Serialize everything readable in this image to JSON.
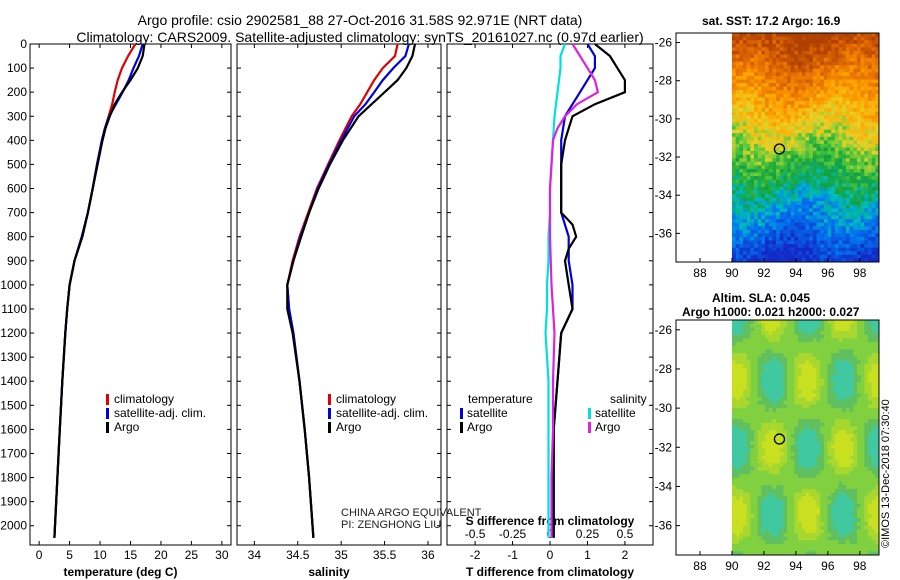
{
  "header": {
    "title_line1": "Argo profile: csio 2902581_88 27-Oct-2016 31.58S 92.971E (NRT data)",
    "title_line2": "Climatology: CARS2009. Satellite-adjusted climatology: synTS_20161027.nc (0.97d earlier)"
  },
  "colors": {
    "climatology": "#e00000",
    "satellite": "#0000e0",
    "argo": "#000000",
    "sat_salinity": "#00e0e0",
    "argo_salinity": "#e020e0"
  },
  "chart_data": [
    {
      "type": "line",
      "name": "temperature",
      "xlabel": "temperature (deg C)",
      "ylabel": "",
      "xlim": [
        -1.5,
        31.5
      ],
      "ylim": [
        2080,
        0
      ],
      "xticks": [
        0,
        5,
        10,
        15,
        20,
        25,
        30
      ],
      "yticks": [
        0,
        100,
        200,
        300,
        400,
        500,
        600,
        700,
        800,
        900,
        1000,
        1100,
        1200,
        1300,
        1400,
        1500,
        1600,
        1700,
        1800,
        1900,
        2000
      ],
      "legend": [
        "climatology",
        "satellite-adj. clim.",
        "Argo"
      ],
      "series": [
        {
          "name": "climatology",
          "depth": [
            0,
            50,
            100,
            150,
            200,
            250,
            300,
            350,
            400,
            500,
            600,
            700,
            800,
            900,
            1000,
            1100,
            1200,
            1400,
            1600,
            1800,
            2050
          ],
          "values": [
            15.8,
            14.6,
            13.6,
            12.9,
            12.4,
            12.0,
            11.4,
            10.8,
            10.3,
            9.5,
            8.8,
            8.0,
            7.0,
            5.8,
            5.0,
            4.6,
            4.3,
            3.8,
            3.4,
            3.0,
            2.5
          ]
        },
        {
          "name": "satellite-adj. clim.",
          "depth": [
            0,
            50,
            100,
            150,
            200,
            250,
            300,
            350,
            400,
            500,
            600,
            700,
            800,
            900,
            1000,
            1100,
            1200,
            1400,
            1600,
            1800,
            2050
          ],
          "values": [
            17.0,
            16.4,
            15.5,
            14.7,
            13.7,
            12.6,
            11.5,
            10.8,
            10.3,
            9.5,
            8.8,
            8.0,
            7.0,
            5.8,
            5.0,
            4.6,
            4.3,
            3.8,
            3.4,
            3.0,
            2.5
          ]
        },
        {
          "name": "Argo",
          "depth": [
            0,
            50,
            100,
            150,
            200,
            250,
            300,
            350,
            400,
            500,
            600,
            700,
            800,
            900,
            1000,
            1100,
            1200,
            1400,
            1600,
            1800,
            2050
          ],
          "values": [
            17.3,
            17.0,
            16.2,
            15.0,
            13.6,
            12.4,
            11.6,
            10.9,
            10.4,
            9.6,
            8.8,
            8.0,
            7.1,
            5.8,
            5.0,
            4.6,
            4.3,
            3.8,
            3.4,
            3.0,
            2.5
          ]
        }
      ]
    },
    {
      "type": "line",
      "name": "salinity",
      "xlabel": "salinity",
      "ylabel": "",
      "xlim": [
        33.8,
        36.15
      ],
      "ylim": [
        2080,
        0
      ],
      "xticks": [
        34,
        34.5,
        35,
        35.5,
        36
      ],
      "legend": [
        "climatology",
        "satellite-adj. clim.",
        "Argo"
      ],
      "series": [
        {
          "name": "climatology",
          "depth": [
            0,
            50,
            100,
            150,
            200,
            250,
            300,
            400,
            500,
            600,
            700,
            800,
            900,
            1000,
            1100,
            1200,
            1400,
            1600,
            1800,
            2050
          ],
          "values": [
            35.65,
            35.62,
            35.48,
            35.38,
            35.3,
            35.22,
            35.12,
            34.98,
            34.85,
            34.72,
            34.62,
            34.52,
            34.44,
            34.38,
            34.4,
            34.45,
            34.52,
            34.58,
            34.63,
            34.68
          ]
        },
        {
          "name": "satellite-adj. clim.",
          "depth": [
            0,
            50,
            100,
            150,
            200,
            250,
            300,
            400,
            500,
            600,
            700,
            800,
            900,
            1000,
            1100,
            1200,
            1400,
            1600,
            1800,
            2050
          ],
          "values": [
            35.78,
            35.74,
            35.6,
            35.48,
            35.38,
            35.28,
            35.15,
            35.0,
            34.86,
            34.73,
            34.63,
            34.53,
            34.45,
            34.38,
            34.4,
            34.45,
            34.52,
            34.58,
            34.63,
            34.68
          ]
        },
        {
          "name": "Argo",
          "depth": [
            0,
            50,
            100,
            150,
            200,
            250,
            300,
            400,
            500,
            600,
            700,
            800,
            900,
            1000,
            1100,
            1200,
            1400,
            1600,
            1800,
            2050
          ],
          "values": [
            35.85,
            35.82,
            35.75,
            35.65,
            35.5,
            35.35,
            35.2,
            35.02,
            34.87,
            34.74,
            34.63,
            34.54,
            34.45,
            34.38,
            34.38,
            34.44,
            34.52,
            34.58,
            34.63,
            34.68
          ]
        }
      ]
    },
    {
      "type": "line",
      "name": "difference from climatology",
      "xlabel": "T difference from climatology",
      "x2label": "S difference from climatology",
      "xlim": [
        -2.75,
        2.75
      ],
      "ylim": [
        2080,
        0
      ],
      "xticks": [
        -2,
        -1,
        0,
        1,
        2
      ],
      "x2ticks": [
        -0.5,
        -0.25,
        0,
        0.25,
        0.5
      ],
      "x2tick_labels": [
        "-0.5",
        "-0.25",
        "0",
        "0.25",
        "0.5"
      ],
      "legend_temperature_title": "temperature",
      "legend_salinity_title": "salinity",
      "legend": [
        "satellite",
        "Argo",
        "satellite",
        "Argo"
      ],
      "series": [
        {
          "name": "T satellite",
          "depth": [
            0,
            50,
            100,
            150,
            200,
            250,
            300,
            400,
            500,
            600,
            700,
            800,
            900,
            1000,
            1100,
            1200,
            1400,
            1600,
            1800,
            2050
          ],
          "values": [
            1.0,
            1.2,
            1.2,
            1.0,
            0.8,
            0.6,
            0.4,
            0.3,
            0.3,
            0.3,
            0.3,
            0.5,
            0.5,
            0.6,
            0.6,
            0.3,
            0.2,
            0.1,
            0.1,
            0.1
          ]
        },
        {
          "name": "T Argo",
          "depth": [
            0,
            50,
            100,
            150,
            200,
            250,
            300,
            350,
            400,
            500,
            600,
            700,
            750,
            800,
            850,
            900,
            1000,
            1100,
            1200,
            1400,
            1600,
            1800,
            2050
          ],
          "values": [
            1.2,
            1.6,
            1.8,
            2.0,
            2.0,
            1.2,
            0.6,
            0.5,
            0.4,
            0.3,
            0.3,
            0.3,
            0.6,
            0.7,
            0.5,
            0.4,
            0.5,
            0.6,
            0.3,
            0.2,
            0.1,
            0.1,
            0.1
          ]
        },
        {
          "name": "S satellite",
          "depth": [
            0,
            50,
            100,
            200,
            300,
            400,
            500,
            600,
            700,
            800,
            900,
            1000,
            1100,
            1200,
            1300,
            1400,
            1600,
            1800,
            2050
          ],
          "values": [
            0.1,
            0.07,
            0.07,
            0.05,
            0.03,
            0.02,
            0.01,
            0.0,
            0.0,
            -0.01,
            -0.01,
            -0.02,
            -0.02,
            -0.03,
            -0.02,
            -0.01,
            -0.01,
            -0.01,
            -0.01
          ]
        },
        {
          "name": "S Argo",
          "depth": [
            0,
            50,
            100,
            150,
            200,
            250,
            300,
            350,
            400,
            500,
            600,
            800,
            1000,
            1100,
            1200,
            1400,
            1600,
            1800,
            2050
          ],
          "values": [
            0.15,
            0.2,
            0.25,
            0.3,
            0.32,
            0.18,
            0.1,
            0.05,
            0.02,
            0.01,
            0.0,
            0.0,
            0.01,
            0.02,
            0.03,
            0.02,
            0.02,
            0.01,
            0.01
          ]
        }
      ]
    }
  ],
  "sst_map": {
    "title": "sat. SST: 17.2 Argo: 16.9",
    "lon_ticks": [
      88,
      90,
      92,
      94,
      96,
      98
    ],
    "lat_ticks": [
      -26,
      -28,
      -30,
      -32,
      -34,
      -36
    ],
    "lon_range": [
      86.5,
      99.2
    ],
    "lat_range": [
      -25.5,
      -37.5
    ],
    "float_position": [
      92.971,
      -31.58
    ]
  },
  "sla_map": {
    "title_line1": "Altim. SLA: 0.045",
    "title_line2": "Argo h1000: 0.021 h2000: 0.027",
    "lon_ticks": [
      88,
      90,
      92,
      94,
      96,
      98
    ],
    "lat_ticks": [
      -26,
      -28,
      -30,
      -32,
      -34,
      -36
    ],
    "lon_range": [
      86.5,
      99.2
    ],
    "lat_range": [
      -25.5,
      -37.5
    ],
    "float_position": [
      92.971,
      -31.58
    ]
  },
  "credits": {
    "line1": "CHINA ARGO EQUIVALENT",
    "line2": "PI: ZENGHONG LIU",
    "stamp": "©IMOS 13-Dec-2018 07:30:40"
  }
}
